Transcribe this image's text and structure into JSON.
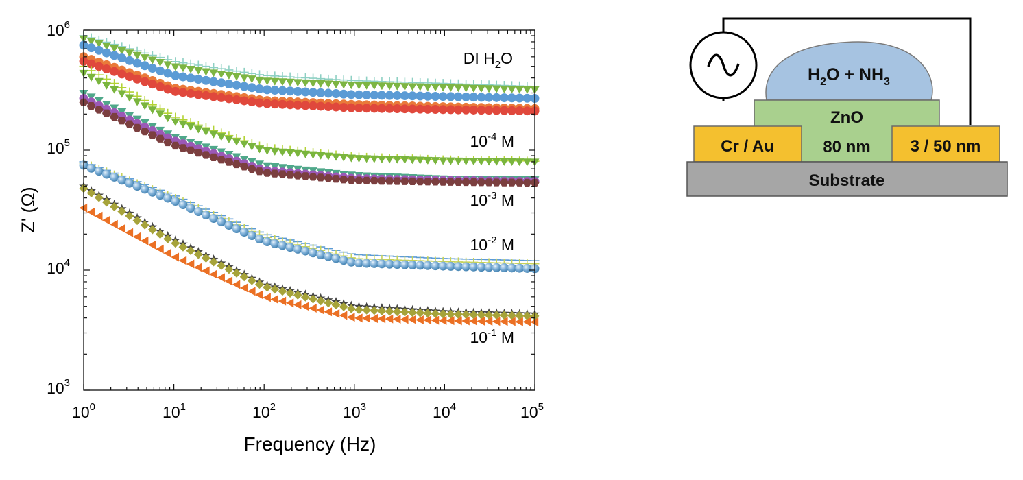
{
  "chart_data": {
    "type": "scatter",
    "xscale": "log",
    "yscale": "log",
    "xlabel": "Frequency (Hz)",
    "ylabel": "Z' (Ω)",
    "xlim": [
      1,
      100000
    ],
    "ylim": [
      1000,
      1000000
    ],
    "x_ticks": [
      {
        "base": "10",
        "exp": "0"
      },
      {
        "base": "10",
        "exp": "1"
      },
      {
        "base": "10",
        "exp": "2"
      },
      {
        "base": "10",
        "exp": "3"
      },
      {
        "base": "10",
        "exp": "4"
      },
      {
        "base": "10",
        "exp": "5"
      }
    ],
    "y_ticks": [
      {
        "base": "10",
        "exp": "3"
      },
      {
        "base": "10",
        "exp": "4"
      },
      {
        "base": "10",
        "exp": "5"
      },
      {
        "base": "10",
        "exp": "6"
      }
    ],
    "x": [
      1,
      10,
      100,
      1000,
      10000,
      100000
    ],
    "series": [
      {
        "name": "DI H2O (a)",
        "color": "#8ed0c3",
        "marker": "plus",
        "values": [
          900000,
          550000,
          420000,
          380000,
          360000,
          340000
        ]
      },
      {
        "name": "DI H2O (b)",
        "color": "#7db543",
        "marker": "triangle-down",
        "values": [
          850000,
          500000,
          380000,
          350000,
          335000,
          320000
        ]
      },
      {
        "name": "DI H2O (c)",
        "color": "#5b9bd5",
        "marker": "circle",
        "values": [
          750000,
          420000,
          320000,
          290000,
          280000,
          270000
        ]
      },
      {
        "name": "DI H2O (d)",
        "color": "#e97a3a",
        "marker": "circle",
        "values": [
          600000,
          330000,
          260000,
          240000,
          230000,
          222000
        ]
      },
      {
        "name": "DI H2O (e)",
        "color": "#e0483c",
        "marker": "circle",
        "values": [
          550000,
          310000,
          245000,
          225000,
          218000,
          212000
        ]
      },
      {
        "name": "1e-4 M (a)",
        "color": "#b3d335",
        "marker": "plus",
        "values": [
          500000,
          190000,
          105000,
          88000,
          83000,
          81000
        ]
      },
      {
        "name": "1e-4 M (b)",
        "color": "#7ab53e",
        "marker": "triangle-down",
        "values": [
          440000,
          175000,
          100000,
          86000,
          82000,
          80000
        ]
      },
      {
        "name": "1e-3 M (a)",
        "color": "#4fa88a",
        "marker": "triangle-down",
        "values": [
          300000,
          130000,
          75000,
          62000,
          58000,
          57000
        ]
      },
      {
        "name": "1e-3 M (b)",
        "color": "#9b59b6",
        "marker": "circle",
        "values": [
          270000,
          120000,
          68000,
          58000,
          56000,
          55000
        ]
      },
      {
        "name": "1e-3 M (c)",
        "color": "#7b3f3f",
        "marker": "hexagon",
        "values": [
          250000,
          110000,
          65000,
          56000,
          54500,
          53500
        ]
      },
      {
        "name": "1e-2 M (a)",
        "color": "#5b9bd5",
        "marker": "dash",
        "values": [
          80000,
          42000,
          20000,
          13500,
          12500,
          12000
        ]
      },
      {
        "name": "1e-2 M (b)",
        "color": "#c7d35a",
        "marker": "plus",
        "values": [
          78000,
          40000,
          19000,
          12500,
          11800,
          11300
        ]
      },
      {
        "name": "1e-2 M (c)",
        "color": "#7fb0d8",
        "marker": "sphere",
        "values": [
          75000,
          38000,
          17500,
          11500,
          10800,
          10300
        ]
      },
      {
        "name": "1e-1 M (a)",
        "color": "#444444",
        "marker": "star",
        "values": [
          50000,
          18000,
          7600,
          5000,
          4500,
          4300
        ]
      },
      {
        "name": "1e-1 M (b)",
        "color": "#a6a33a",
        "marker": "diamond",
        "values": [
          48000,
          17000,
          7300,
          4700,
          4300,
          4150
        ]
      },
      {
        "name": "1e-1 M (c)",
        "color": "#eb7024",
        "marker": "triangle-left",
        "values": [
          33000,
          13000,
          6000,
          4000,
          3800,
          3700
        ]
      }
    ],
    "annotations": [
      {
        "id": "di",
        "text_parts": {
          "a": "DI H",
          "sub": "2",
          "b": "O"
        }
      },
      {
        "id": "m4",
        "text_parts": {
          "a": "10",
          "sup": "-4",
          "b": " M"
        }
      },
      {
        "id": "m3",
        "text_parts": {
          "a": "10",
          "sup": "-3",
          "b": " M"
        }
      },
      {
        "id": "m2",
        "text_parts": {
          "a": "10",
          "sup": "-2",
          "b": " M"
        }
      },
      {
        "id": "m1",
        "text_parts": {
          "a": "10",
          "sup": "-1",
          "b": " M"
        }
      }
    ]
  },
  "device": {
    "droplet": {
      "a": "H",
      "sub1": "2",
      "b": "O + NH",
      "sub2": "3"
    },
    "zno_label": "ZnO",
    "zno_thickness": "80 nm",
    "left_electrode": "Cr / Au",
    "right_electrode": "3 / 50 nm",
    "substrate": "Substrate",
    "colors": {
      "droplet": "#a6c3e1",
      "zno": "#a9d08e",
      "electrode": "#f4c02f",
      "substrate": "#a6a6a6"
    }
  }
}
